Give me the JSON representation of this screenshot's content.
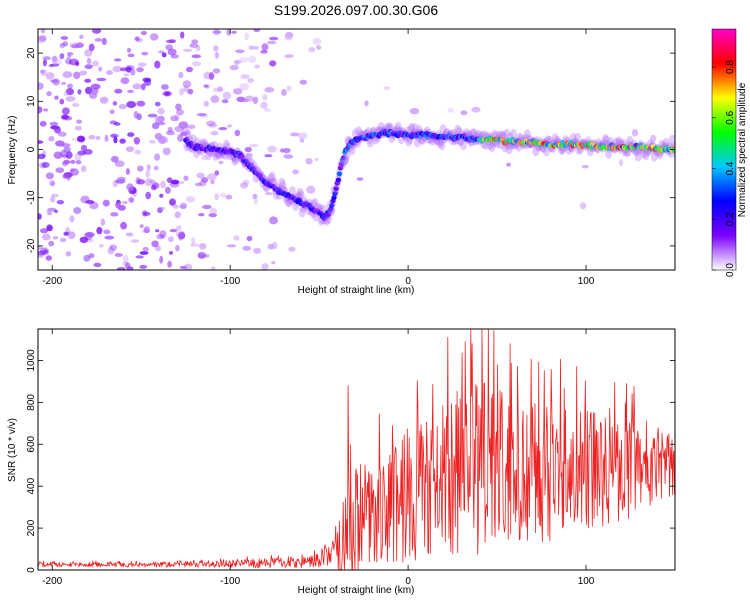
{
  "title": "S199.2026.097.00.30.G06",
  "chart_data": [
    {
      "type": "heatmap",
      "xlabel": "Height of straight line (km)",
      "ylabel": "Frequency (Hz)",
      "xlim": [
        -208,
        150
      ],
      "ylim": [
        -25,
        25
      ],
      "xticks": [
        -200,
        -100,
        0,
        100
      ],
      "yticks": [
        -20,
        -10,
        0,
        10,
        20
      ],
      "grid": false,
      "ridge": {
        "description": "Frequency of peak spectral amplitude vs height",
        "x": [
          -125,
          -120,
          -110,
          -100,
          -95,
          -90,
          -85,
          -80,
          -75,
          -70,
          -65,
          -60,
          -55,
          -50,
          -47,
          -44,
          -41,
          -38,
          -35,
          -30,
          -20,
          -10,
          0,
          10,
          20,
          30,
          40,
          50,
          60,
          70,
          80,
          90,
          100,
          110,
          120,
          130,
          140,
          148
        ],
        "y": [
          2,
          0.5,
          0,
          -0.5,
          -1,
          -3,
          -5,
          -7,
          -8,
          -9,
          -10,
          -11,
          -12,
          -13,
          -14,
          -13,
          -9,
          -4,
          0,
          2,
          3,
          3.5,
          3,
          3,
          2.5,
          2.5,
          2,
          2,
          1.5,
          1.5,
          1,
          1,
          1,
          0.5,
          0.5,
          0.5,
          0,
          0
        ]
      },
      "colorbar": {
        "label": "Normalized spectral amplitude",
        "range": [
          0.0,
          0.95
        ],
        "ticks": [
          "0.0",
          "0.2",
          "0.4",
          "0.6",
          "0.8"
        ],
        "tick_values": [
          0.0,
          0.2,
          0.4,
          0.6,
          0.8
        ],
        "colormap": [
          "#ffffff",
          "#7b00ff",
          "#0000ff",
          "#00c8ff",
          "#00ff00",
          "#ffff00",
          "#ff0000",
          "#ff00c8"
        ]
      }
    },
    {
      "type": "line",
      "xlabel": "Height of straight line (km)",
      "ylabel": "SNR (10 * v/v)",
      "xlim": [
        -208,
        150
      ],
      "ylim": [
        0,
        1150
      ],
      "xticks": [
        -200,
        -100,
        0,
        100
      ],
      "yticks": [
        0,
        200,
        400,
        600,
        800,
        1000
      ],
      "grid": false,
      "series": [
        {
          "name": "SNR",
          "color": "#ee2222",
          "envelope_x": [
            -208,
            -150,
            -110,
            -90,
            -70,
            -55,
            -45,
            -40,
            -35,
            -30,
            -20,
            -10,
            0,
            10,
            20,
            30,
            40,
            50,
            60,
            70,
            80,
            90,
            100,
            110,
            120,
            130,
            140,
            150
          ],
          "envelope_mean": [
            25,
            25,
            28,
            32,
            35,
            40,
            70,
            120,
            180,
            230,
            280,
            320,
            360,
            400,
            440,
            470,
            480,
            480,
            470,
            470,
            470,
            480,
            470,
            460,
            480,
            490,
            500,
            510
          ],
          "envelope_spread": [
            10,
            12,
            15,
            20,
            25,
            30,
            60,
            130,
            220,
            260,
            300,
            320,
            330,
            350,
            380,
            400,
            420,
            400,
            380,
            360,
            340,
            320,
            300,
            280,
            250,
            220,
            180,
            150
          ],
          "peaks": [
            {
              "x": -34,
              "y": 880
            },
            {
              "x": 22,
              "y": 1110
            },
            {
              "x": 32,
              "y": 1090
            },
            {
              "x": 45,
              "y": 1150
            },
            {
              "x": 57,
              "y": 1080
            }
          ]
        }
      ]
    }
  ]
}
